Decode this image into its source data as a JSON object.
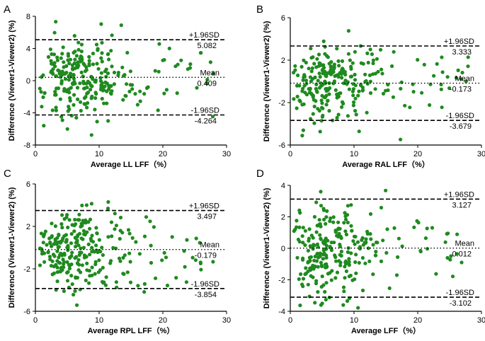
{
  "figure": {
    "background": "#ffffff",
    "point_color": "#1f8a1f",
    "line_color": "#000000"
  },
  "chart_data": [
    {
      "type": "scatter",
      "panel": "A",
      "xlabel": "Average LL LFF（%）",
      "ylabel": "Difference (Viewer1-Viewer2) (%)",
      "xlim": [
        0,
        30
      ],
      "ylim": [
        -8,
        8
      ],
      "xticks": [
        0,
        10,
        20,
        30
      ],
      "yticks": [
        -8,
        -4,
        0,
        4,
        8
      ],
      "lines": [
        {
          "kind": "upper",
          "value": 5.082,
          "label": "+1.96SD",
          "value_text": "5.082"
        },
        {
          "kind": "mean",
          "value": 0.409,
          "label": "Mean",
          "value_text": "0.409"
        },
        {
          "kind": "lower",
          "value": -4.264,
          "label": "-1.96SD",
          "value_text": "-4.264"
        }
      ],
      "seed": 11,
      "n_points": 270,
      "x_max": 28,
      "sd": 2.38
    },
    {
      "type": "scatter",
      "panel": "B",
      "xlabel": "Average RAL LFF（%）",
      "ylabel": "Difference (Viewer1-Viewer2) (%)",
      "xlim": [
        0,
        30
      ],
      "ylim": [
        -6,
        6
      ],
      "xticks": [
        0,
        10,
        20,
        30
      ],
      "yticks": [
        -6,
        -2,
        2,
        6
      ],
      "lines": [
        {
          "kind": "upper",
          "value": 3.333,
          "label": "+1.96SD",
          "value_text": "3.333"
        },
        {
          "kind": "mean",
          "value": -0.173,
          "label": "Mean",
          "value_text": "-0.173"
        },
        {
          "kind": "lower",
          "value": -3.679,
          "label": "-1.96SD",
          "value_text": "-3.679"
        }
      ],
      "seed": 23,
      "n_points": 260,
      "x_max": 28,
      "sd": 1.79
    },
    {
      "type": "scatter",
      "panel": "C",
      "xlabel": "Average RPL LFF（%）",
      "ylabel": "Difference (Viewer1-Viewer2) (%)",
      "xlim": [
        0,
        30
      ],
      "ylim": [
        -6,
        6
      ],
      "xticks": [
        0,
        10,
        20,
        30
      ],
      "yticks": [
        -6,
        -2,
        2,
        6
      ],
      "lines": [
        {
          "kind": "upper",
          "value": 3.497,
          "label": "+1.96SD",
          "value_text": "3.497"
        },
        {
          "kind": "mean",
          "value": -0.179,
          "label": "Mean",
          "value_text": "-0.179"
        },
        {
          "kind": "lower",
          "value": -3.854,
          "label": "-1.96SD",
          "value_text": "-3.854"
        }
      ],
      "seed": 37,
      "n_points": 270,
      "x_max": 28,
      "sd": 1.87
    },
    {
      "type": "scatter",
      "panel": "D",
      "xlabel": "Average LFF（%）",
      "ylabel": "Difference (Viewer1-Viewer2) (%)",
      "xlim": [
        0,
        30
      ],
      "ylim": [
        -4,
        4
      ],
      "xticks": [
        0,
        10,
        20,
        30
      ],
      "yticks": [
        -4,
        -2,
        0,
        2,
        4
      ],
      "lines": [
        {
          "kind": "upper",
          "value": 3.127,
          "label": "+1.96SD",
          "value_text": "3.127"
        },
        {
          "kind": "mean",
          "value": 0.012,
          "label": "Mean",
          "value_text": "0.012"
        },
        {
          "kind": "lower",
          "value": -3.102,
          "label": "-1.96SD",
          "value_text": "-3.102"
        }
      ],
      "seed": 53,
      "n_points": 270,
      "x_max": 28,
      "sd": 1.59
    }
  ]
}
